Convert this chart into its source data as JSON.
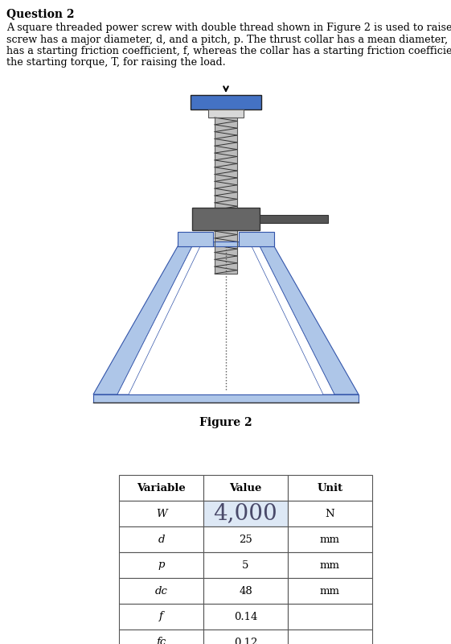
{
  "title": "Question 2",
  "question_text": "A square threaded power screw with double thread shown in Figure 2 is used to raise a load, W. The\nscrew has a major diameter, d, and a pitch, p. The thrust collar has a mean diameter, dc. The screw\nhas a starting friction coefficient, f, whereas the collar has a starting friction coefficient, fc. Estimate\nthe starting torque, T, for raising the load.",
  "figure_label": "Figure 2",
  "table_headers": [
    "Variable",
    "Value",
    "Unit"
  ],
  "table_rows": [
    [
      "W",
      "4,000",
      "N"
    ],
    [
      "d",
      "25",
      "mm"
    ],
    [
      "p",
      "5",
      "mm"
    ],
    [
      "dc",
      "48",
      "mm"
    ],
    [
      "f",
      "0.14",
      ""
    ],
    [
      "fc",
      "0.12",
      ""
    ]
  ],
  "W_highlight_color": "#dde8f5",
  "table_border_color": "#555555",
  "blue_top_color": "#4472C4",
  "light_blue_color": "#aec6e8",
  "light_blue_inner": "#c8ddf0",
  "nut_color": "#666666",
  "nut_edge_color": "#333333",
  "screw_bg_color": "#bbbbbb",
  "connector_color": "#d8d8d8",
  "bg_color": "#ffffff",
  "handle_color": "#555555"
}
